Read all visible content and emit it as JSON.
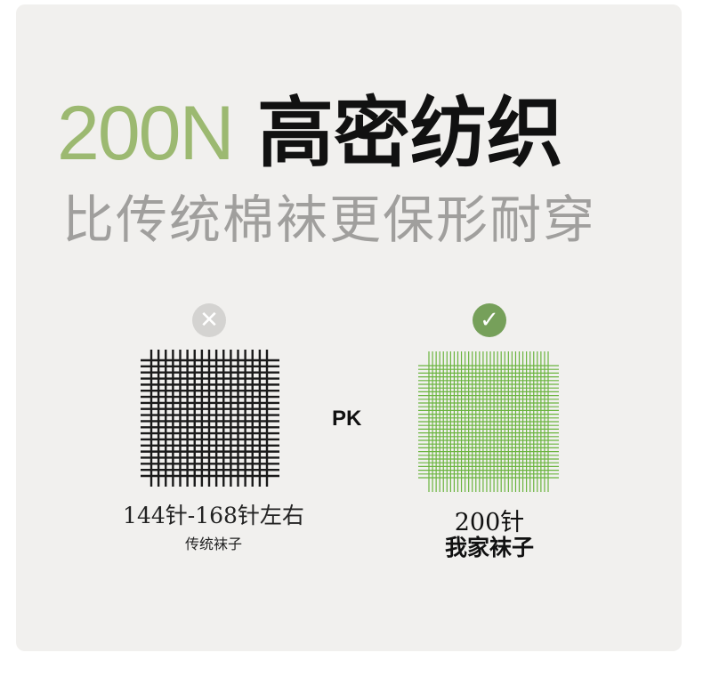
{
  "headline": {
    "number": "200N",
    "text": "高密纺织"
  },
  "subtitle": "比传统棉袜更保形耐穿",
  "left": {
    "badge_icon": "cross-icon",
    "count_label": "144针-168针左右",
    "name": "传统袜子",
    "grid_color": "#1a1a1a"
  },
  "vs_label": "PK",
  "right": {
    "badge_icon": "check-icon",
    "count_label": "200针",
    "name": "我家袜子",
    "grid_color": "#6ab43e"
  },
  "colors": {
    "accent": "#9cb971",
    "check": "#76a05a"
  }
}
